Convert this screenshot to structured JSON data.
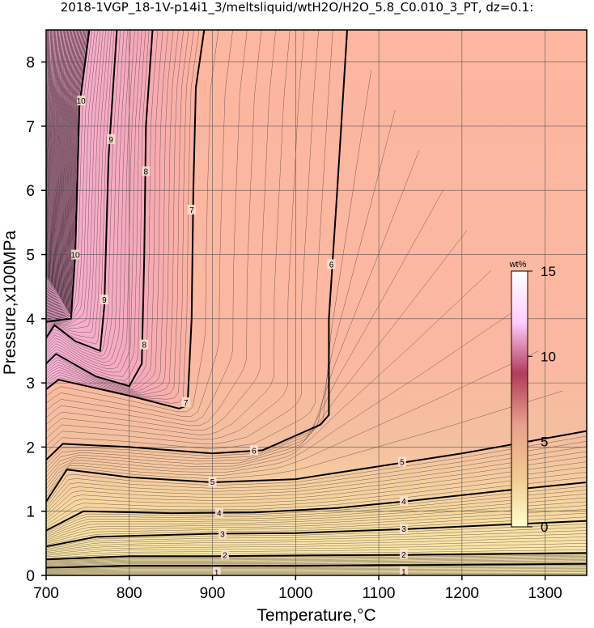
{
  "chart_data": {
    "type": "contour",
    "title": "2018-1VGP_18-1V-p14i1_3/meltsliquid/wtH2O/H2O_5.8_C0.010_3_PT, dz=0.1:",
    "xlabel": "Temperature,°C",
    "ylabel": "Pressure,x100MPa",
    "xlim": [
      700,
      1350
    ],
    "ylim": [
      0,
      8.5
    ],
    "x_ticks": [
      700,
      800,
      900,
      1000,
      1100,
      1200,
      1300
    ],
    "y_ticks": [
      0,
      1,
      2,
      3,
      4,
      5,
      6,
      7,
      8
    ],
    "grid": true,
    "colorbar": {
      "unit": "wt%",
      "range": [
        0,
        15
      ],
      "ticks": [
        0,
        5,
        10,
        15
      ],
      "colors": [
        "#ffffcc",
        "#f2c890",
        "#e8a08c",
        "#b23b5a",
        "#ffccff",
        "#ffffff"
      ]
    },
    "contour_interval": 0.1,
    "major_contours": [
      {
        "level": 1,
        "points": [
          [
            700,
            0.12
          ],
          [
            800,
            0.15
          ],
          [
            900,
            0.15
          ],
          [
            1000,
            0.15
          ],
          [
            1130,
            0.16
          ],
          [
            1350,
            0.18
          ]
        ],
        "labels": [
          [
            905,
            0.05
          ],
          [
            1130,
            0.06
          ]
        ]
      },
      {
        "level": 2,
        "points": [
          [
            700,
            0.25
          ],
          [
            800,
            0.3
          ],
          [
            900,
            0.3
          ],
          [
            1000,
            0.31
          ],
          [
            1130,
            0.32
          ],
          [
            1350,
            0.35
          ]
        ],
        "labels": [
          [
            915,
            0.32
          ],
          [
            1130,
            0.33
          ]
        ]
      },
      {
        "level": 3,
        "points": [
          [
            700,
            0.45
          ],
          [
            760,
            0.6
          ],
          [
            900,
            0.65
          ],
          [
            1000,
            0.66
          ],
          [
            1130,
            0.72
          ],
          [
            1350,
            0.85
          ]
        ],
        "labels": [
          [
            912,
            0.65
          ],
          [
            1130,
            0.73
          ]
        ]
      },
      {
        "level": 4,
        "points": [
          [
            700,
            0.7
          ],
          [
            745,
            1.0
          ],
          [
            850,
            0.97
          ],
          [
            950,
            0.98
          ],
          [
            1050,
            1.05
          ],
          [
            1130,
            1.15
          ],
          [
            1250,
            1.32
          ],
          [
            1350,
            1.45
          ]
        ],
        "labels": [
          [
            908,
            0.98
          ],
          [
            1130,
            1.16
          ]
        ]
      },
      {
        "level": 5,
        "points": [
          [
            700,
            1.15
          ],
          [
            725,
            1.65
          ],
          [
            800,
            1.53
          ],
          [
            900,
            1.45
          ],
          [
            1000,
            1.5
          ],
          [
            1100,
            1.7
          ],
          [
            1200,
            1.9
          ],
          [
            1350,
            2.25
          ]
        ],
        "labels": [
          [
            900,
            1.46
          ],
          [
            1128,
            1.77
          ]
        ]
      },
      {
        "level": 6,
        "points": [
          [
            700,
            1.8
          ],
          [
            720,
            2.05
          ],
          [
            800,
            2.0
          ],
          [
            900,
            1.9
          ],
          [
            960,
            1.95
          ],
          [
            1030,
            2.35
          ],
          [
            1040,
            2.5
          ],
          [
            1040,
            4.0
          ],
          [
            1050,
            6.0
          ],
          [
            1062,
            8.5
          ]
        ],
        "labels": [
          [
            950,
            1.95
          ],
          [
            1043,
            4.85
          ]
        ]
      },
      {
        "level": 7,
        "points": [
          [
            700,
            2.9
          ],
          [
            715,
            3.05
          ],
          [
            800,
            2.8
          ],
          [
            860,
            2.6
          ],
          [
            870,
            2.65
          ],
          [
            875,
            4.0
          ],
          [
            877,
            6.0
          ],
          [
            880,
            7.6
          ],
          [
            890,
            8.5
          ]
        ],
        "labels": [
          [
            868,
            2.7
          ],
          [
            875,
            5.7
          ]
        ]
      },
      {
        "level": 8,
        "points": [
          [
            700,
            3.3
          ],
          [
            712,
            3.45
          ],
          [
            760,
            3.1
          ],
          [
            800,
            2.95
          ],
          [
            815,
            3.3
          ],
          [
            818,
            5.0
          ],
          [
            820,
            7.0
          ],
          [
            828,
            8.5
          ]
        ],
        "labels": [
          [
            818,
            3.6
          ],
          [
            820,
            6.3
          ]
        ]
      },
      {
        "level": 9,
        "points": [
          [
            700,
            3.7
          ],
          [
            710,
            3.9
          ],
          [
            735,
            3.65
          ],
          [
            765,
            3.5
          ],
          [
            770,
            4.2
          ],
          [
            775,
            6.5
          ],
          [
            785,
            8.5
          ]
        ],
        "labels": [
          [
            770,
            4.3
          ],
          [
            778,
            6.8
          ]
        ]
      },
      {
        "level": 10,
        "points": [
          [
            700,
            3.95
          ],
          [
            730,
            4.0
          ],
          [
            735,
            5.0
          ],
          [
            740,
            7.3
          ],
          [
            752,
            8.5
          ]
        ],
        "labels": [
          [
            735,
            5.0
          ],
          [
            742,
            7.4
          ]
        ]
      }
    ]
  }
}
